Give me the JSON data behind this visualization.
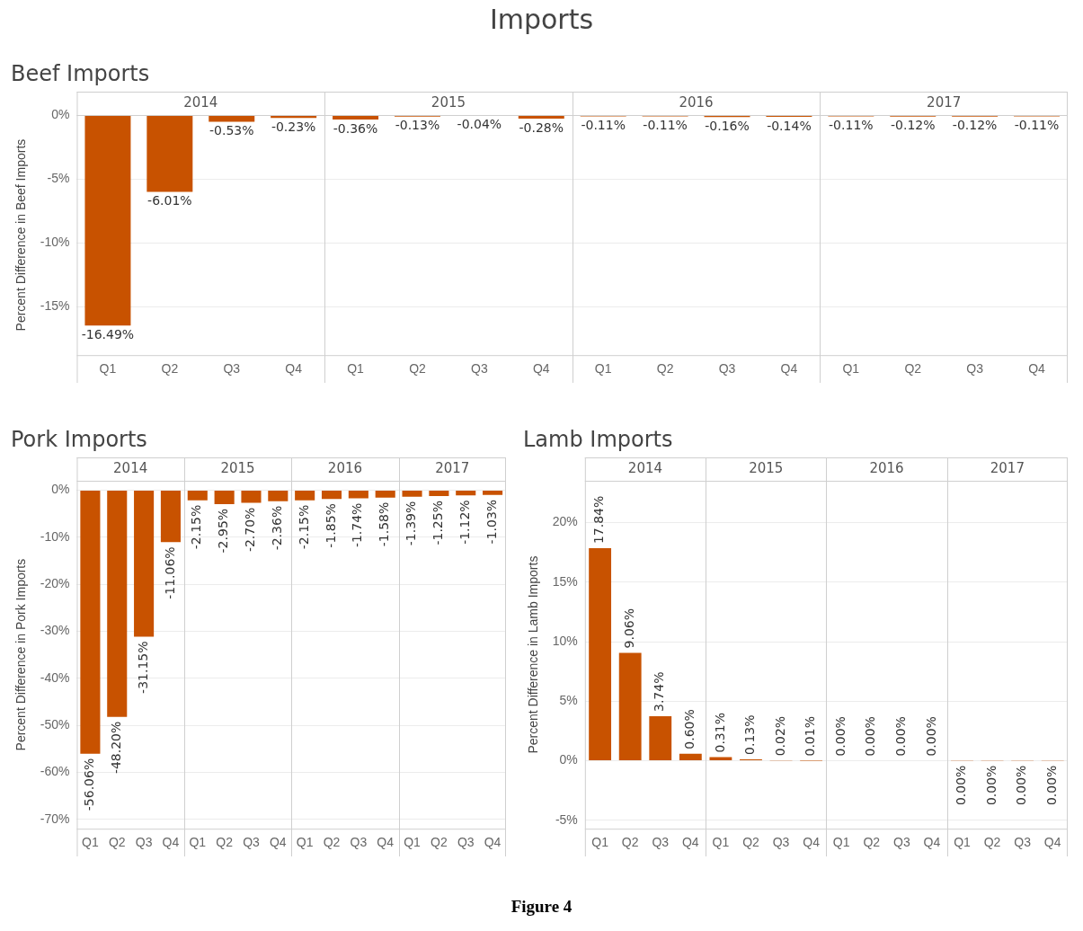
{
  "chart_data": [
    {
      "type": "other",
      "title": "Imports"
    },
    {
      "type": "bar",
      "title": "Beef Imports",
      "ylabel": "Percent Difference in Beef Imports",
      "color": "#c85200",
      "grid": "y",
      "annotations": [
        "2014",
        "2015",
        "2016",
        "2017"
      ],
      "categories": [
        "Q1",
        "Q2",
        "Q3",
        "Q4",
        "Q1",
        "Q2",
        "Q3",
        "Q4",
        "Q1",
        "Q2",
        "Q3",
        "Q4",
        "Q1",
        "Q2",
        "Q3",
        "Q4"
      ],
      "values": [
        -16.49,
        -6.01,
        -0.53,
        -0.23,
        -0.36,
        -0.13,
        -0.04,
        -0.28,
        -0.11,
        -0.11,
        -0.16,
        -0.14,
        -0.11,
        -0.12,
        -0.12,
        -0.11
      ],
      "value_labels": [
        "-16.49%",
        "-6.01%",
        "-0.53%",
        "-0.23%",
        "-0.36%",
        "-0.13%",
        "-0.04%",
        "-0.28%",
        "-0.11%",
        "-0.11%",
        "-0.16%",
        "-0.14%",
        "-0.11%",
        "-0.12%",
        "-0.12%",
        "-0.11%"
      ],
      "ylim": [
        -18.8,
        0
      ],
      "yticks": [
        {
          "value": 0,
          "label": "0%"
        },
        {
          "value": -5,
          "label": "-5%"
        },
        {
          "value": -10,
          "label": "-10%"
        },
        {
          "value": -15,
          "label": "-15%"
        }
      ]
    },
    {
      "type": "bar",
      "title": "Pork Imports",
      "ylabel": "Percent Difference in Pork Imports",
      "color": "#c85200",
      "grid": "y",
      "annotations": [
        "2014",
        "2015",
        "2016",
        "2017"
      ],
      "categories": [
        "Q1",
        "Q2",
        "Q3",
        "Q4",
        "Q1",
        "Q2",
        "Q3",
        "Q4",
        "Q1",
        "Q2",
        "Q3",
        "Q4",
        "Q1",
        "Q2",
        "Q3",
        "Q4"
      ],
      "values": [
        -56.06,
        -48.2,
        -31.15,
        -11.06,
        -2.15,
        -2.95,
        -2.7,
        -2.36,
        -2.15,
        -1.85,
        -1.74,
        -1.58,
        -1.39,
        -1.25,
        -1.12,
        -1.03
      ],
      "value_labels": [
        "-56.06%",
        "-48.20%",
        "-31.15%",
        "-11.06%",
        "-2.15%",
        "-2.95%",
        "-2.70%",
        "-2.36%",
        "-2.15%",
        "-1.85%",
        "-1.74%",
        "-1.58%",
        "-1.39%",
        "-1.25%",
        "-1.12%",
        "-1.03%"
      ],
      "ylim": [
        -72,
        2
      ],
      "yticks": [
        {
          "value": 0,
          "label": "0%"
        },
        {
          "value": -10,
          "label": "-10%"
        },
        {
          "value": -20,
          "label": "-20%"
        },
        {
          "value": -30,
          "label": "-30%"
        },
        {
          "value": -40,
          "label": "-40%"
        },
        {
          "value": -50,
          "label": "-50%"
        },
        {
          "value": -60,
          "label": "-60%"
        },
        {
          "value": -70,
          "label": "-70%"
        }
      ]
    },
    {
      "type": "bar",
      "title": "Lamb Imports",
      "ylabel": "Percent Difference in Lamb Imports",
      "color": "#c85200",
      "grid": "y",
      "annotations": [
        "2014",
        "2015",
        "2016",
        "2017"
      ],
      "categories": [
        "Q1",
        "Q2",
        "Q3",
        "Q4",
        "Q1",
        "Q2",
        "Q3",
        "Q4",
        "Q1",
        "Q2",
        "Q3",
        "Q4",
        "Q1",
        "Q2",
        "Q3",
        "Q4"
      ],
      "values": [
        17.84,
        9.06,
        3.74,
        0.6,
        0.31,
        0.13,
        0.02,
        0.01,
        0,
        0,
        0,
        0,
        -0.001,
        -0.001,
        -0.001,
        -0.001
      ],
      "value_labels": [
        "17.84%",
        "9.06%",
        "3.74%",
        "0.60%",
        "0.31%",
        "0.13%",
        "0.02%",
        "0.01%",
        "0.00%",
        "0.00%",
        "0.00%",
        "0.00%",
        "0.00%",
        "0.00%",
        "0.00%",
        "0.00%"
      ],
      "ylim": [
        -5.7,
        23.5
      ],
      "yticks": [
        {
          "value": 20,
          "label": "20%"
        },
        {
          "value": 15,
          "label": "15%"
        },
        {
          "value": 10,
          "label": "10%"
        },
        {
          "value": 5,
          "label": "5%"
        },
        {
          "value": 0,
          "label": "0%"
        },
        {
          "value": -5,
          "label": "-5%"
        }
      ]
    },
    {
      "type": "other",
      "annotations": [
        "Figure 4"
      ]
    }
  ]
}
